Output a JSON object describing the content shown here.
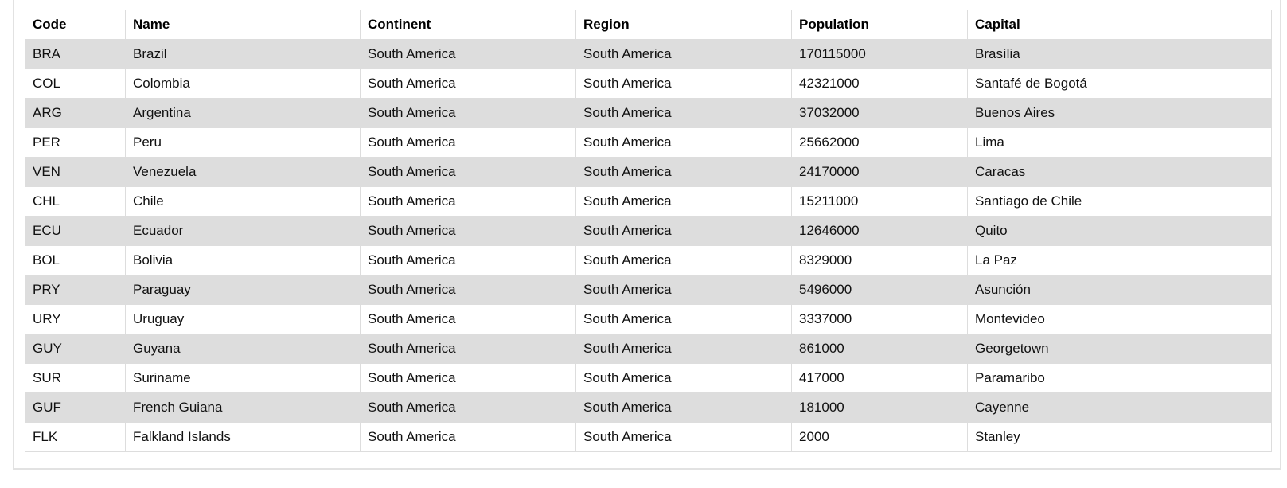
{
  "table": {
    "headers": [
      "Code",
      "Name",
      "Continent",
      "Region",
      "Population",
      "Capital"
    ],
    "rows": [
      [
        "BRA",
        "Brazil",
        "South America",
        "South America",
        "170115000",
        "Brasília"
      ],
      [
        "COL",
        "Colombia",
        "South America",
        "South America",
        "42321000",
        "Santafé de Bogotá"
      ],
      [
        "ARG",
        "Argentina",
        "South America",
        "South America",
        "37032000",
        "Buenos Aires"
      ],
      [
        "PER",
        "Peru",
        "South America",
        "South America",
        "25662000",
        "Lima"
      ],
      [
        "VEN",
        "Venezuela",
        "South America",
        "South America",
        "24170000",
        "Caracas"
      ],
      [
        "CHL",
        "Chile",
        "South America",
        "South America",
        "15211000",
        "Santiago de Chile"
      ],
      [
        "ECU",
        "Ecuador",
        "South America",
        "South America",
        "12646000",
        "Quito"
      ],
      [
        "BOL",
        "Bolivia",
        "South America",
        "South America",
        "8329000",
        "La Paz"
      ],
      [
        "PRY",
        "Paraguay",
        "South America",
        "South America",
        "5496000",
        "Asunción"
      ],
      [
        "URY",
        "Uruguay",
        "South America",
        "South America",
        "3337000",
        "Montevideo"
      ],
      [
        "GUY",
        "Guyana",
        "South America",
        "South America",
        "861000",
        "Georgetown"
      ],
      [
        "SUR",
        "Suriname",
        "South America",
        "South America",
        "417000",
        "Paramaribo"
      ],
      [
        "GUF",
        "French Guiana",
        "South America",
        "South America",
        "181000",
        "Cayenne"
      ],
      [
        "FLK",
        "Falkland Islands",
        "South America",
        "South America",
        "2000",
        "Stanley"
      ]
    ]
  }
}
